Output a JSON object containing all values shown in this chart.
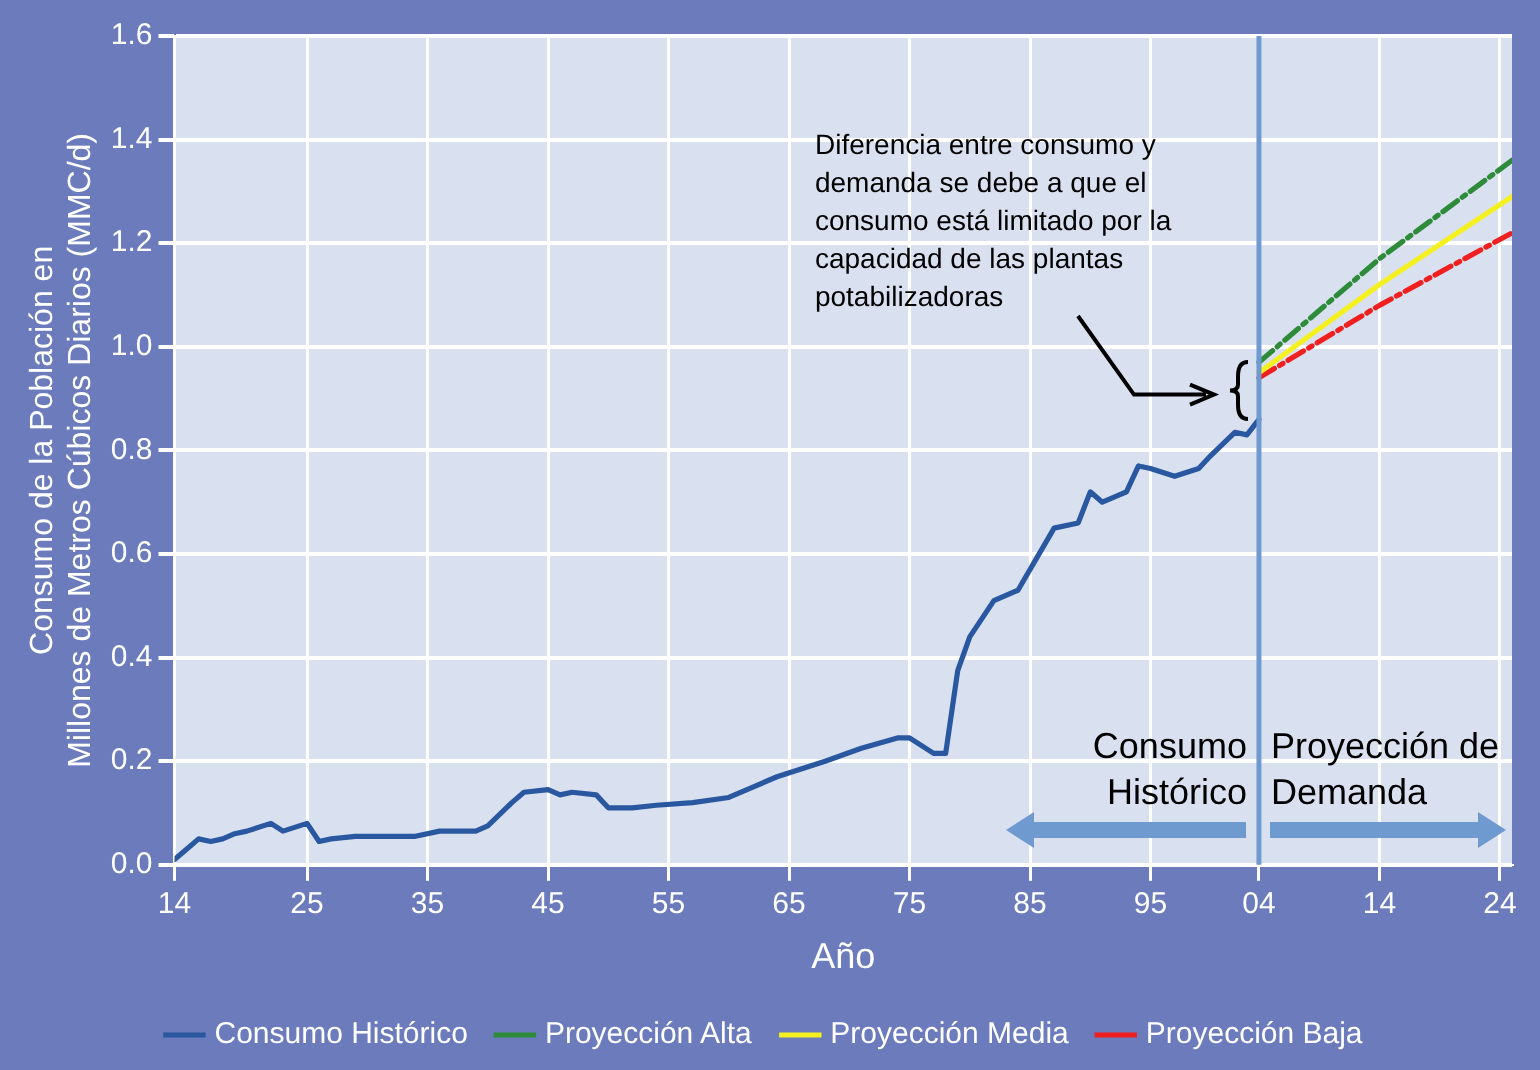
{
  "chart_data": {
    "type": "line",
    "xlabel": "Año",
    "ylabel": "Consumo de la Población en Millones de Metros Cúbicos Diarios (MMC/d)",
    "xlim": [
      1914,
      2025
    ],
    "xticks": [
      {
        "value": 1914,
        "label": "14"
      },
      {
        "value": 1925,
        "label": "25"
      },
      {
        "value": 1935,
        "label": "35"
      },
      {
        "value": 1945,
        "label": "45"
      },
      {
        "value": 1955,
        "label": "55"
      },
      {
        "value": 1965,
        "label": "65"
      },
      {
        "value": 1975,
        "label": "75"
      },
      {
        "value": 1985,
        "label": "85"
      },
      {
        "value": 1995,
        "label": "95"
      },
      {
        "value": 2004,
        "label": "04"
      },
      {
        "value": 2014,
        "label": "14"
      },
      {
        "value": 2024,
        "label": "24"
      }
    ],
    "ylim": [
      0,
      1.6
    ],
    "yticks": [
      {
        "value": 0,
        "label": "0.0"
      },
      0.2,
      0.4,
      0.6,
      0.8,
      {
        "value": 1,
        "label": "1.0"
      },
      1.2,
      1.4,
      1.6
    ],
    "grid": true,
    "legend": "bottom",
    "line_style": "solid",
    "ref_lines": [
      {
        "axis": "x",
        "value": 2004,
        "color": "#6f9ad0"
      }
    ],
    "annotations": [
      "Diferencia entre consumo y demanda se debe a que el consumo está limitado por la capacidad de las plantas potabilizadoras",
      "Consumo Histórico",
      "Proyección de Demanda"
    ],
    "series": [
      {
        "name": "Consumo Histórico",
        "color": "#2a58a0",
        "x": [
          1914,
          1915,
          1916,
          1917,
          1918,
          1919,
          1920,
          1922,
          1923,
          1925,
          1926,
          1927,
          1929,
          1934,
          1936,
          1939,
          1940,
          1942,
          1943,
          1945,
          1946,
          1947,
          1949,
          1950,
          1952,
          1954,
          1957,
          1960,
          1962,
          1964,
          1968,
          1971,
          1974,
          1975,
          1977,
          1978,
          1979,
          1980,
          1982,
          1984,
          1987,
          1989,
          1990,
          1991,
          1993,
          1994,
          1995,
          1997,
          1999,
          2000,
          2002,
          2003,
          2004
        ],
        "values": [
          0.01,
          0.03,
          0.05,
          0.045,
          0.05,
          0.06,
          0.065,
          0.08,
          0.065,
          0.08,
          0.045,
          0.05,
          0.055,
          0.055,
          0.065,
          0.065,
          0.075,
          0.12,
          0.14,
          0.145,
          0.135,
          0.14,
          0.135,
          0.11,
          0.11,
          0.115,
          0.12,
          0.13,
          0.15,
          0.17,
          0.2,
          0.225,
          0.245,
          0.245,
          0.215,
          0.215,
          0.375,
          0.44,
          0.51,
          0.53,
          0.65,
          0.66,
          0.72,
          0.7,
          0.72,
          0.77,
          0.765,
          0.75,
          0.765,
          0.79,
          0.835,
          0.83,
          0.86
        ]
      },
      {
        "name": "Proyección Alta",
        "color": "#2e8b3a",
        "line_style": "dashed",
        "x": [
          2004,
          2014,
          2025
        ],
        "values": [
          0.97,
          1.17,
          1.36
        ]
      },
      {
        "name": "Proyección Media",
        "color": "#f5f020",
        "x": [
          2004,
          2014,
          2025
        ],
        "values": [
          0.95,
          1.12,
          1.29
        ]
      },
      {
        "name": "Proyección Baja",
        "color": "#f02020",
        "line_style": "dashed",
        "x": [
          2004,
          2014,
          2025
        ],
        "values": [
          0.94,
          1.08,
          1.22
        ]
      }
    ]
  }
}
